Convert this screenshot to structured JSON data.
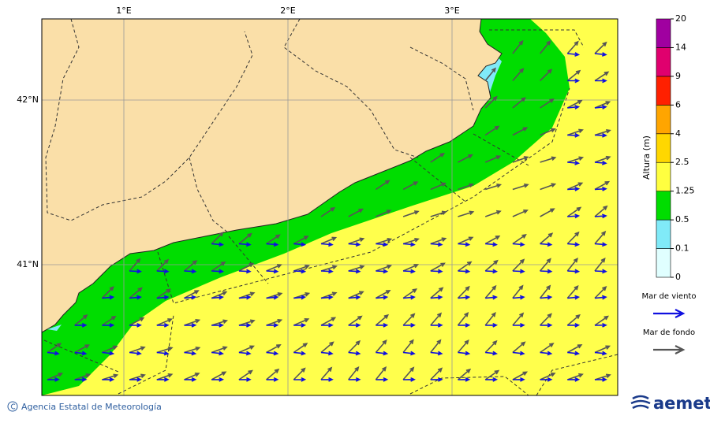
{
  "map": {
    "lon_labels": [
      "1°E",
      "2°E",
      "3°E"
    ],
    "lat_labels": [
      "42°N",
      "41°N"
    ],
    "colorbar": {
      "title": "Altura (m)",
      "ticks": [
        0,
        0.1,
        0.5,
        1.25,
        2.5,
        4,
        6,
        9,
        14,
        20
      ],
      "colors": [
        "#e0ffff",
        "#80eaf8",
        "#00dd00",
        "#ffff40",
        "#ffd700",
        "#ffa500",
        "#ff2000",
        "#e0006e",
        "#a000a0"
      ]
    },
    "legend": [
      {
        "label": "Mar de viento",
        "color": "#1010e0"
      },
      {
        "label": "Mar de fondo",
        "color": "#555555"
      }
    ]
  },
  "footer": {
    "credit": "Agencia Estatal de Meteorología",
    "logo": "aemet"
  }
}
